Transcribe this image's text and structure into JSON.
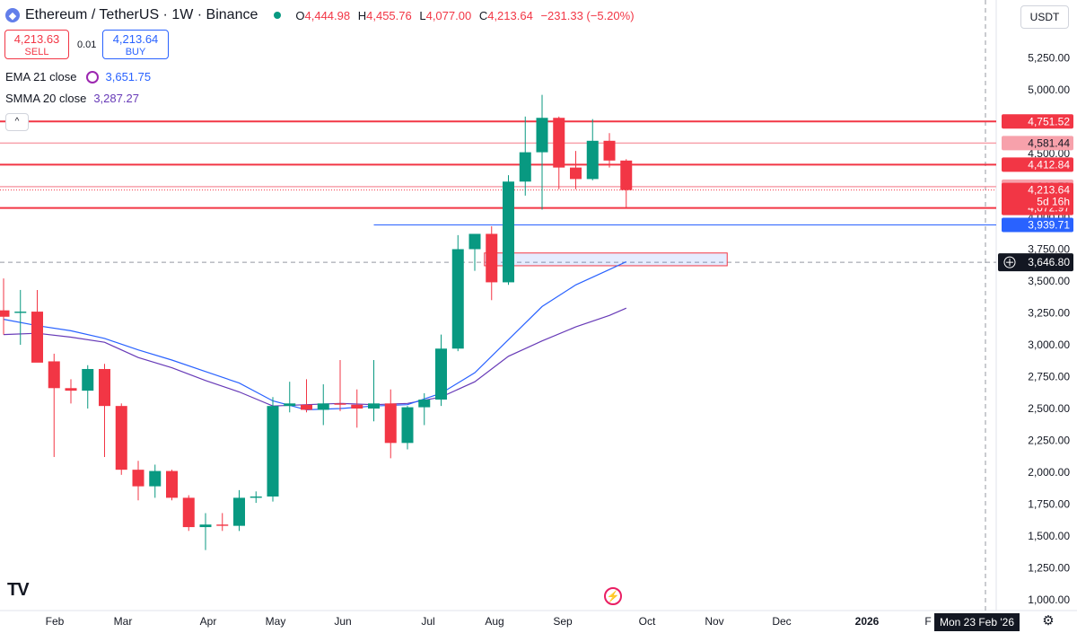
{
  "header": {
    "title": "Ethereum / TetherUS · 1W · Binance",
    "open_label": "O",
    "open": "4,444.98",
    "high_label": "H",
    "high": "4,455.76",
    "low_label": "L",
    "low": "4,077.00",
    "close_label": "C",
    "close": "4,213.64",
    "change": "−231.33 (−5.20%)"
  },
  "trade": {
    "sell_price": "4,213.63",
    "sell_label": "SELL",
    "spread": "0.01",
    "buy_price": "4,213.64",
    "buy_label": "BUY"
  },
  "indicators": {
    "ema_label": "EMA 21 close",
    "ema_value": "3,651.75",
    "smma_label": "SMMA 20 close",
    "smma_value": "3,287.27"
  },
  "currency": "USDT",
  "cursor_date": "Mon 23 Feb '26",
  "colors": {
    "up": "#089981",
    "down": "#f23645",
    "ema": "#2962ff",
    "smma": "#673ab7",
    "level": "#f23645",
    "level_light": "#f7a1ab"
  },
  "chart_data": {
    "type": "candlestick",
    "interval": "1W",
    "ylim": [
      1000,
      5400
    ],
    "y_ticks": [
      1000,
      1250,
      1500,
      1750,
      2000,
      2250,
      2500,
      2750,
      3000,
      3250,
      3500,
      3750,
      4000,
      4250,
      4500,
      4750,
      5000,
      5250
    ],
    "y_tick_labels": [
      "1,000.00",
      "1,250.00",
      "1,500.00",
      "1,750.00",
      "2,000.00",
      "2,250.00",
      "2,500.00",
      "2,750.00",
      "3,000.00",
      "3,250.00",
      "3,500.00",
      "3,750.00",
      "4,000.00",
      "4,250.00",
      "4,500.00",
      "4,750.00",
      "5,000.00",
      "5,250.00"
    ],
    "x_labels": [
      "Feb",
      "Mar",
      "Apr",
      "May",
      "Jun",
      "Jul",
      "Aug",
      "Sep",
      "Oct",
      "Nov",
      "Dec",
      "2026",
      "F"
    ],
    "candles": [
      {
        "o": 3270,
        "h": 3520,
        "l": 3080,
        "c": 3220
      },
      {
        "o": 3250,
        "h": 3430,
        "l": 3000,
        "c": 3260
      },
      {
        "o": 3260,
        "h": 3430,
        "l": 2870,
        "c": 2860
      },
      {
        "o": 2870,
        "h": 2930,
        "l": 2120,
        "c": 2660
      },
      {
        "o": 2660,
        "h": 2730,
        "l": 2540,
        "c": 2640
      },
      {
        "o": 2640,
        "h": 2840,
        "l": 2500,
        "c": 2810
      },
      {
        "o": 2810,
        "h": 2850,
        "l": 2120,
        "c": 2520
      },
      {
        "o": 2520,
        "h": 2540,
        "l": 1980,
        "c": 2020
      },
      {
        "o": 2020,
        "h": 2090,
        "l": 1780,
        "c": 1890
      },
      {
        "o": 1890,
        "h": 2060,
        "l": 1800,
        "c": 2010
      },
      {
        "o": 2010,
        "h": 2020,
        "l": 1780,
        "c": 1800
      },
      {
        "o": 1800,
        "h": 1820,
        "l": 1540,
        "c": 1570
      },
      {
        "o": 1570,
        "h": 1680,
        "l": 1390,
        "c": 1590
      },
      {
        "o": 1590,
        "h": 1680,
        "l": 1540,
        "c": 1580
      },
      {
        "o": 1580,
        "h": 1860,
        "l": 1540,
        "c": 1800
      },
      {
        "o": 1800,
        "h": 1850,
        "l": 1760,
        "c": 1810
      },
      {
        "o": 1810,
        "h": 2590,
        "l": 1770,
        "c": 2520
      },
      {
        "o": 2520,
        "h": 2710,
        "l": 2470,
        "c": 2540
      },
      {
        "o": 2530,
        "h": 2730,
        "l": 2470,
        "c": 2490
      },
      {
        "o": 2490,
        "h": 2690,
        "l": 2370,
        "c": 2540
      },
      {
        "o": 2540,
        "h": 2880,
        "l": 2480,
        "c": 2530
      },
      {
        "o": 2530,
        "h": 2650,
        "l": 2350,
        "c": 2500
      },
      {
        "o": 2500,
        "h": 2880,
        "l": 2400,
        "c": 2540
      },
      {
        "o": 2540,
        "h": 2650,
        "l": 2110,
        "c": 2230
      },
      {
        "o": 2230,
        "h": 2520,
        "l": 2180,
        "c": 2510
      },
      {
        "o": 2510,
        "h": 2620,
        "l": 2370,
        "c": 2570
      },
      {
        "o": 2570,
        "h": 3080,
        "l": 2520,
        "c": 2970
      },
      {
        "o": 2970,
        "h": 3860,
        "l": 2950,
        "c": 3750
      },
      {
        "o": 3750,
        "h": 3860,
        "l": 3580,
        "c": 3870
      },
      {
        "o": 3870,
        "h": 3930,
        "l": 3350,
        "c": 3490
      },
      {
        "o": 3490,
        "h": 4330,
        "l": 3470,
        "c": 4280
      },
      {
        "o": 4280,
        "h": 4790,
        "l": 4170,
        "c": 4510
      },
      {
        "o": 4510,
        "h": 4960,
        "l": 4060,
        "c": 4780
      },
      {
        "o": 4780,
        "h": 4790,
        "l": 4220,
        "c": 4390
      },
      {
        "o": 4390,
        "h": 4520,
        "l": 4220,
        "c": 4300
      },
      {
        "o": 4300,
        "h": 4770,
        "l": 4290,
        "c": 4600
      },
      {
        "o": 4600,
        "h": 4660,
        "l": 4390,
        "c": 4445
      },
      {
        "o": 4444.98,
        "h": 4455.76,
        "l": 4077.0,
        "c": 4213.64
      }
    ],
    "ema21": [
      [
        0,
        3200
      ],
      [
        2,
        3150
      ],
      [
        4,
        3110
      ],
      [
        6,
        3050
      ],
      [
        8,
        2960
      ],
      [
        10,
        2880
      ],
      [
        12,
        2790
      ],
      [
        14,
        2700
      ],
      [
        16,
        2560
      ],
      [
        18,
        2490
      ],
      [
        20,
        2500
      ],
      [
        22,
        2520
      ],
      [
        24,
        2530
      ],
      [
        26,
        2620
      ],
      [
        28,
        2780
      ],
      [
        30,
        3040
      ],
      [
        32,
        3300
      ],
      [
        34,
        3470
      ],
      [
        36,
        3590
      ],
      [
        37,
        3651.75
      ]
    ],
    "smma20": [
      [
        0,
        3080
      ],
      [
        2,
        3090
      ],
      [
        4,
        3060
      ],
      [
        6,
        3020
      ],
      [
        8,
        2900
      ],
      [
        10,
        2820
      ],
      [
        12,
        2720
      ],
      [
        14,
        2630
      ],
      [
        16,
        2520
      ],
      [
        18,
        2530
      ],
      [
        20,
        2540
      ],
      [
        22,
        2530
      ],
      [
        24,
        2540
      ],
      [
        26,
        2590
      ],
      [
        28,
        2710
      ],
      [
        30,
        2910
      ],
      [
        32,
        3030
      ],
      [
        34,
        3140
      ],
      [
        36,
        3230
      ],
      [
        37,
        3287.27
      ]
    ],
    "levels": [
      {
        "value": 4751.52,
        "label": "4,751.52",
        "style": "solid"
      },
      {
        "value": 4581.44,
        "label": "4,581.44",
        "style": "light"
      },
      {
        "value": 4412.84,
        "label": "4,412.84",
        "style": "solid"
      },
      {
        "value": 4240.72,
        "label": "4,240.72",
        "style": "light"
      },
      {
        "value": 4072.97,
        "label": "4,072.97",
        "style": "solid"
      }
    ],
    "current_price": {
      "value": 4213.64,
      "label": "4,213.64",
      "countdown": "5d 16h"
    },
    "blue_level": {
      "value": 3939.71,
      "label": "3,939.71",
      "from_index": 22
    },
    "crosshair_price": {
      "value": 3646.8,
      "label": "3,646.80"
    },
    "zone": {
      "top": 3720,
      "bottom": 3620,
      "from_index": 29,
      "to_index": 43
    }
  }
}
